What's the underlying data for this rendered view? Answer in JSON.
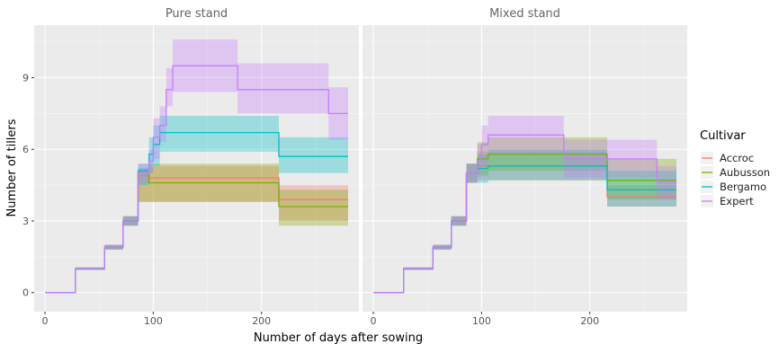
{
  "chart_data": {
    "type": "line",
    "xlabel": "Number of days after sowing",
    "ylabel": "Number of tillers",
    "xlim": [
      -10,
      290
    ],
    "ylim": [
      -0.8,
      11.2
    ],
    "x_ticks": [
      0,
      100,
      200
    ],
    "y_ticks": [
      0,
      3,
      6,
      9
    ],
    "x_tick_labels": [
      "0",
      "100",
      "200"
    ],
    "y_tick_labels": [
      "0",
      "3",
      "6",
      "9"
    ],
    "grid": true,
    "legend": {
      "title": "Cultivar",
      "position": "right",
      "entries": [
        "Accroc",
        "Aubusson",
        "Bergamo",
        "Expert"
      ]
    },
    "colors": {
      "Accroc": "#F8766D",
      "Aubusson": "#7CAE00",
      "Bergamo": "#00BFC4",
      "Expert": "#C77CFF"
    },
    "panels": [
      {
        "title": "Pure stand",
        "series": [
          {
            "name": "Accroc",
            "x": [
              0,
              24,
              28,
              48,
              55,
              66,
              72,
              80,
              86,
              92,
              96,
              100,
              106,
              112,
              216,
              280
            ],
            "y": [
              0,
              0,
              1,
              1,
              1.9,
              1.9,
              3,
              3,
              4.9,
              4.9,
              4.8,
              4.8,
              4.8,
              4.8,
              3.9,
              3.9
            ],
            "lower": [
              0,
              0,
              0.95,
              0.95,
              1.8,
              1.8,
              2.8,
              2.8,
              3.8,
              3.8,
              3.8,
              3.8,
              3.8,
              3.8,
              3,
              3
            ],
            "upper": [
              0,
              0,
              1.05,
              1.05,
              2,
              2,
              3.2,
              3.2,
              5.2,
              5.2,
              5.3,
              5.3,
              5.3,
              5.3,
              4.5,
              4.5
            ]
          },
          {
            "name": "Aubusson",
            "x": [
              0,
              24,
              28,
              48,
              55,
              66,
              72,
              80,
              86,
              92,
              96,
              100,
              106,
              112,
              216,
              280
            ],
            "y": [
              0,
              0,
              1,
              1,
              1.9,
              1.9,
              3,
              3,
              5,
              5,
              4.6,
              4.6,
              4.6,
              4.6,
              3.6,
              3.6
            ],
            "lower": [
              0,
              0,
              0.95,
              0.95,
              1.8,
              1.8,
              2.8,
              2.8,
              3.8,
              3.8,
              3.8,
              3.8,
              3.8,
              3.8,
              2.8,
              2.8
            ],
            "upper": [
              0,
              0,
              1.05,
              1.05,
              2,
              2,
              3.2,
              3.2,
              5.2,
              5.2,
              5.4,
              5.4,
              5.4,
              5.4,
              4.3,
              4.3
            ]
          },
          {
            "name": "Bergamo",
            "x": [
              0,
              24,
              28,
              48,
              55,
              66,
              72,
              80,
              86,
              92,
              96,
              100,
              106,
              112,
              216,
              280
            ],
            "y": [
              0,
              0,
              1,
              1,
              1.9,
              1.9,
              3,
              3,
              5.1,
              5.1,
              5.8,
              6.2,
              6.7,
              6.7,
              5.7,
              5.7
            ],
            "lower": [
              0,
              0,
              0.95,
              0.95,
              1.8,
              1.8,
              2.8,
              2.8,
              4.5,
              4.5,
              5,
              5.3,
              5.9,
              5.9,
              5,
              5
            ],
            "upper": [
              0,
              0,
              1.05,
              1.05,
              2,
              2,
              3.2,
              3.2,
              5.4,
              5.4,
              6.5,
              7,
              7.4,
              7.4,
              6.5,
              6.5
            ]
          },
          {
            "name": "Expert",
            "x": [
              0,
              24,
              28,
              48,
              55,
              66,
              72,
              80,
              86,
              92,
              96,
              100,
              106,
              112,
              118,
              178,
              262,
              280
            ],
            "y": [
              0,
              0,
              1,
              1,
              1.9,
              1.9,
              3,
              3,
              5,
              5,
              5.5,
              6.5,
              7,
              8.5,
              9.5,
              8.5,
              7.5,
              7.5
            ],
            "lower": [
              0,
              0,
              0.95,
              0.95,
              1.8,
              1.8,
              2.8,
              2.8,
              4.6,
              4.6,
              5,
              5.6,
              6.3,
              7.8,
              8.4,
              7.5,
              6.4,
              6.4
            ],
            "upper": [
              0,
              0,
              1.05,
              1.05,
              2,
              2,
              3.2,
              3.2,
              5.4,
              5.4,
              6,
              7.3,
              7.8,
              9.4,
              10.6,
              9.6,
              8.6,
              8.6
            ]
          }
        ]
      },
      {
        "title": "Mixed stand",
        "series": [
          {
            "name": "Accroc",
            "x": [
              0,
              24,
              28,
              48,
              55,
              66,
              72,
              80,
              86,
              92,
              96,
              100,
              106,
              176,
              216,
              280
            ],
            "y": [
              0,
              0,
              1,
              1,
              1.9,
              1.9,
              3,
              3,
              5,
              5,
              5.3,
              5.3,
              5.3,
              5.3,
              4,
              4
            ],
            "lower": [
              0,
              0,
              0.95,
              0.95,
              1.8,
              1.8,
              2.8,
              2.8,
              4.6,
              4.6,
              4.7,
              4.7,
              4.7,
              4.7,
              3.6,
              3.6
            ],
            "upper": [
              0,
              0,
              1.05,
              1.05,
              2,
              2,
              3.2,
              3.2,
              5.4,
              5.4,
              5.9,
              5.9,
              5.9,
              5.9,
              4.5,
              4.5
            ]
          },
          {
            "name": "Aubusson",
            "x": [
              0,
              24,
              28,
              48,
              55,
              66,
              72,
              80,
              86,
              92,
              96,
              100,
              106,
              176,
              216,
              280
            ],
            "y": [
              0,
              0,
              1,
              1,
              1.9,
              1.9,
              3,
              3,
              5,
              5,
              5.6,
              5.6,
              5.8,
              5.8,
              4.7,
              4.7
            ],
            "lower": [
              0,
              0,
              0.95,
              0.95,
              1.8,
              1.8,
              2.8,
              2.8,
              4.6,
              4.6,
              4.9,
              4.9,
              5.1,
              5.1,
              3.9,
              3.9
            ],
            "upper": [
              0,
              0,
              1.05,
              1.05,
              2,
              2,
              3.2,
              3.2,
              5.4,
              5.4,
              6.3,
              6.3,
              6.5,
              6.5,
              5.6,
              5.6
            ]
          },
          {
            "name": "Bergamo",
            "x": [
              0,
              24,
              28,
              48,
              55,
              66,
              72,
              80,
              86,
              92,
              96,
              100,
              106,
              176,
              216,
              280
            ],
            "y": [
              0,
              0,
              1,
              1,
              1.9,
              1.9,
              3,
              3,
              5,
              5,
              5.2,
              5.2,
              5.3,
              5.3,
              4.3,
              4.3
            ],
            "lower": [
              0,
              0,
              0.95,
              0.95,
              1.8,
              1.8,
              2.8,
              2.8,
              4.6,
              4.6,
              4.6,
              4.6,
              4.7,
              4.7,
              3.6,
              3.6
            ],
            "upper": [
              0,
              0,
              1.05,
              1.05,
              2,
              2,
              3.2,
              3.2,
              5.4,
              5.4,
              5.8,
              5.8,
              6,
              6,
              5.1,
              5.1
            ]
          },
          {
            "name": "Expert",
            "x": [
              0,
              24,
              28,
              48,
              55,
              66,
              72,
              80,
              86,
              92,
              96,
              100,
              106,
              176,
              216,
              262,
              280
            ],
            "y": [
              0,
              0,
              1,
              1,
              1.9,
              1.9,
              3,
              3,
              5,
              5,
              5.5,
              6.2,
              6.6,
              5.6,
              5.6,
              4.6,
              4.6
            ],
            "lower": [
              0,
              0,
              0.95,
              0.95,
              1.8,
              1.8,
              2.8,
              2.8,
              4.6,
              4.6,
              4.8,
              5.3,
              5.8,
              4.8,
              4.8,
              3.9,
              3.9
            ],
            "upper": [
              0,
              0,
              1.05,
              1.05,
              2,
              2,
              3.2,
              3.2,
              5.4,
              5.4,
              6.2,
              7,
              7.4,
              6.4,
              6.4,
              5.3,
              5.3
            ]
          }
        ]
      }
    ]
  }
}
